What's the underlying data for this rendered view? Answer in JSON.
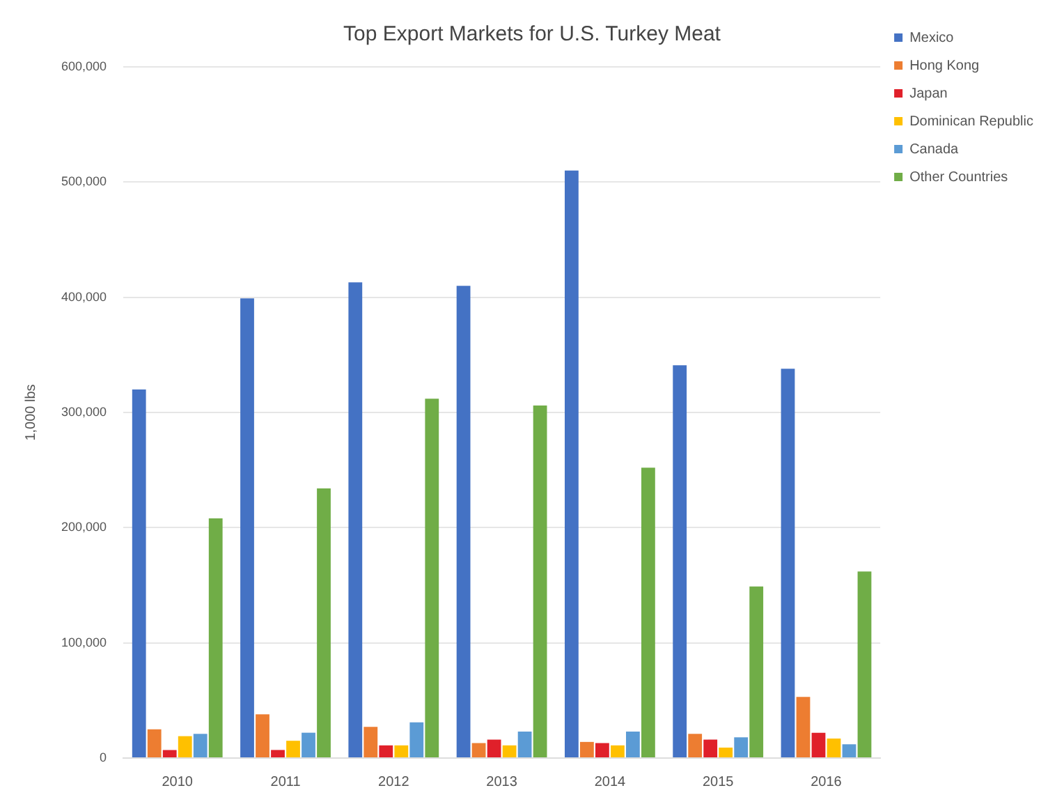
{
  "chart_data": {
    "type": "bar",
    "title": "Top Export Markets for U.S. Turkey Meat",
    "ylabel": "1,000 lbs",
    "categories": [
      "2010",
      "2011",
      "2012",
      "2013",
      "2014",
      "2015",
      "2016"
    ],
    "series": [
      {
        "name": "Mexico",
        "color": "#4472c4",
        "values": [
          320000,
          399000,
          413000,
          410000,
          510000,
          341000,
          338000
        ]
      },
      {
        "name": "Hong Kong",
        "color": "#ed7d31",
        "values": [
          25000,
          38000,
          27000,
          13000,
          14000,
          21000,
          53000
        ]
      },
      {
        "name": "Japan",
        "color": "#e0202a",
        "values": [
          7000,
          7000,
          11000,
          16000,
          13000,
          16000,
          22000
        ]
      },
      {
        "name": "Dominican Republic",
        "color": "#ffc000",
        "values": [
          19000,
          15000,
          11000,
          11000,
          11000,
          9000,
          17000
        ]
      },
      {
        "name": "Canada",
        "color": "#5b9bd5",
        "values": [
          21000,
          22000,
          31000,
          23000,
          23000,
          18000,
          12000
        ]
      },
      {
        "name": "Other Countries",
        "color": "#70ad47",
        "values": [
          208000,
          234000,
          312000,
          306000,
          252000,
          149000,
          162000
        ]
      }
    ],
    "ylim": [
      0,
      600000
    ],
    "yticks": [
      0,
      {
        "value": 100000,
        "label": "100,000"
      },
      {
        "value": 200000,
        "label": "200,000"
      },
      {
        "value": 300000,
        "label": "300,000"
      },
      {
        "value": 400000,
        "label": "400,000"
      },
      {
        "value": 500000,
        "label": "500,000"
      },
      {
        "value": 600000,
        "label": "600,000"
      }
    ],
    "grid": "y",
    "legend": "top right"
  }
}
